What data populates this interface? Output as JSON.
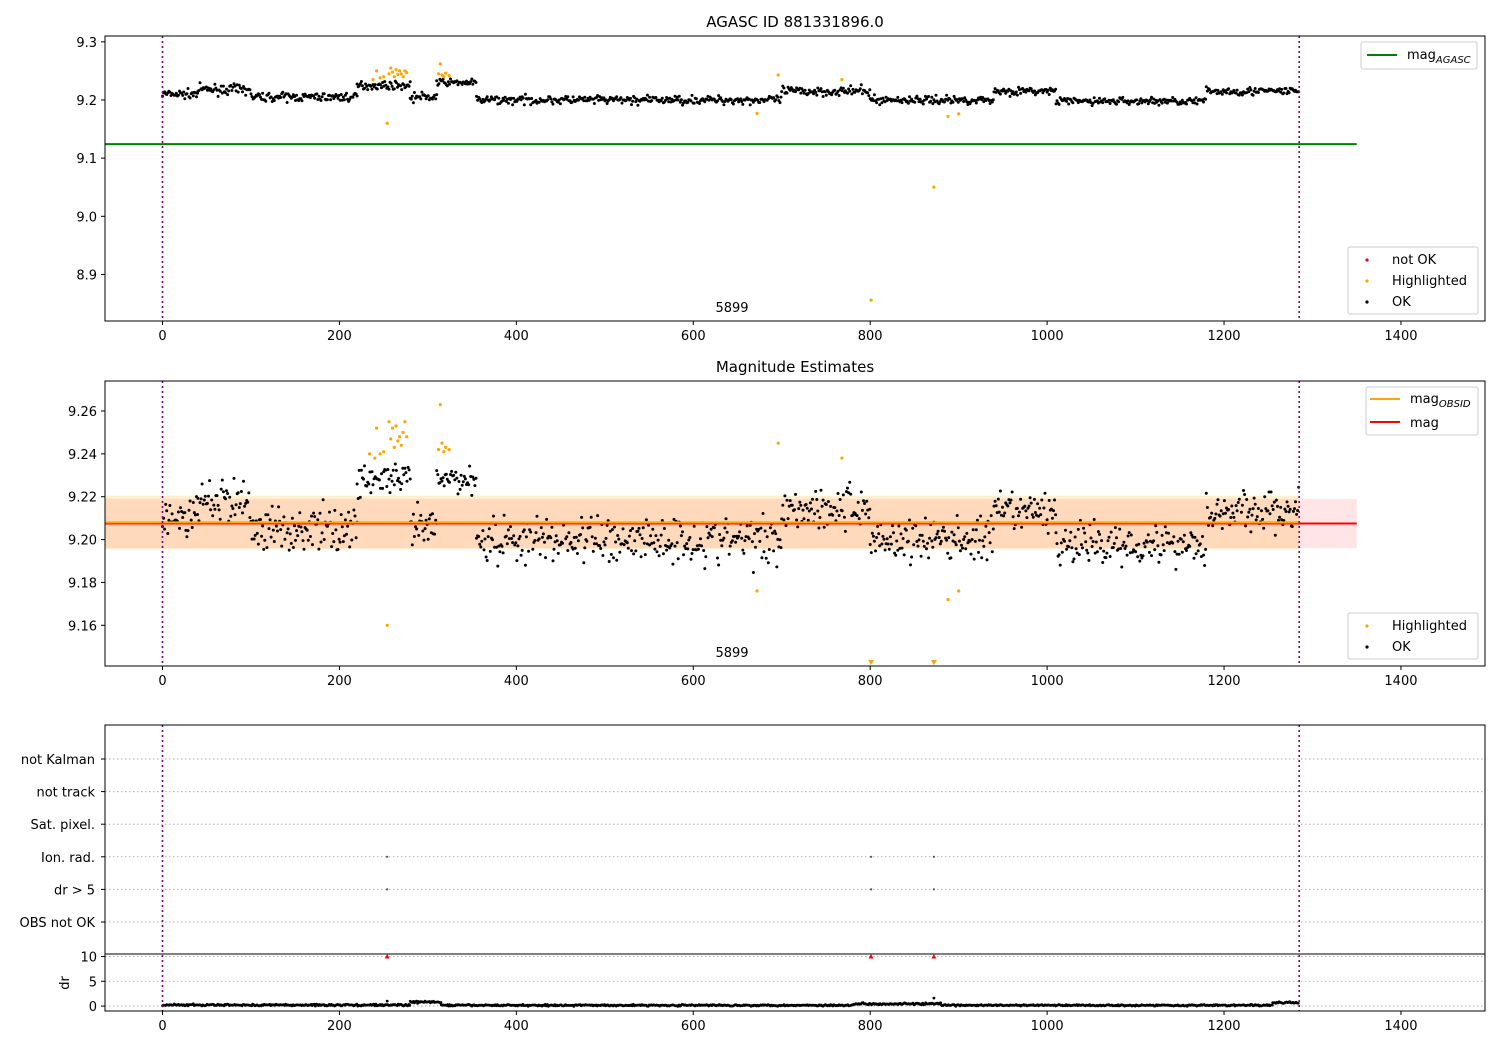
{
  "chart_data": [
    {
      "type": "scatter",
      "title": "AGASC ID 881331896.0",
      "xlim": [
        -65,
        1495
      ],
      "ylim": [
        8.82,
        9.31
      ],
      "xticks": [
        0,
        200,
        400,
        600,
        800,
        1000,
        1200,
        1400
      ],
      "yticks": [
        8.9,
        9.0,
        9.1,
        9.2,
        9.3
      ],
      "grid": false,
      "obsid_label": "5899",
      "obs_boundaries": [
        0,
        1285
      ],
      "legend_upper": [
        {
          "label": "mag",
          "sub": "AGASC",
          "color": "#008000"
        }
      ],
      "legend_lower": [
        {
          "label": "not OK",
          "color": "#ff0000"
        },
        {
          "label": "Highlighted",
          "color": "#ffa500"
        },
        {
          "label": "OK",
          "color": "#000000"
        }
      ],
      "mag_agasc": 9.124,
      "mag_agasc_xrange": [
        -65,
        1350
      ],
      "series": [
        {
          "name": "OK",
          "color": "#000000",
          "segments": [
            {
              "x": [
                0,
                40
              ],
              "base": 9.21,
              "amp": 0.009
            },
            {
              "x": [
                40,
                100
              ],
              "base": 9.218,
              "amp": 0.01
            },
            {
              "x": [
                100,
                220
              ],
              "base": 9.205,
              "amp": 0.009
            },
            {
              "x": [
                220,
                280
              ],
              "base": 9.225,
              "amp": 0.008
            },
            {
              "x": [
                280,
                310
              ],
              "base": 9.205,
              "amp": 0.01
            },
            {
              "x": [
                310,
                355
              ],
              "base": 9.23,
              "amp": 0.007
            },
            {
              "x": [
                355,
                650
              ],
              "base": 9.2,
              "amp": 0.009
            },
            {
              "x": [
                650,
                700
              ],
              "base": 9.2,
              "amp": 0.01
            },
            {
              "x": [
                700,
                800
              ],
              "base": 9.215,
              "amp": 0.01
            },
            {
              "x": [
                800,
                940
              ],
              "base": 9.2,
              "amp": 0.009
            },
            {
              "x": [
                940,
                1010
              ],
              "base": 9.215,
              "amp": 0.008
            },
            {
              "x": [
                1010,
                1180
              ],
              "base": 9.198,
              "amp": 0.008
            },
            {
              "x": [
                1180,
                1285
              ],
              "base": 9.215,
              "amp": 0.009
            }
          ]
        },
        {
          "name": "Highlighted",
          "color": "#ffa500",
          "points": [
            [
              238,
              9.235
            ],
            [
              242,
              9.25
            ],
            [
              246,
              9.238
            ],
            [
              250,
              9.24
            ],
            [
              254,
              9.16
            ],
            [
              256,
              9.245
            ],
            [
              258,
              9.255
            ],
            [
              260,
              9.248
            ],
            [
              262,
              9.24
            ],
            [
              264,
              9.252
            ],
            [
              266,
              9.244
            ],
            [
              268,
              9.25
            ],
            [
              270,
              9.245
            ],
            [
              272,
              9.24
            ],
            [
              274,
              9.25
            ],
            [
              276,
              9.247
            ],
            [
              312,
              9.245
            ],
            [
              314,
              9.262
            ],
            [
              316,
              9.243
            ],
            [
              318,
              9.24
            ],
            [
              320,
              9.246
            ],
            [
              324,
              9.242
            ],
            [
              672,
              9.177
            ],
            [
              696,
              9.243
            ],
            [
              768,
              9.235
            ],
            [
              801,
              8.856
            ],
            [
              872,
              9.05
            ],
            [
              888,
              9.172
            ],
            [
              900,
              9.176
            ]
          ]
        }
      ]
    },
    {
      "type": "scatter",
      "title": "Magnitude Estimates",
      "xlim": [
        -65,
        1495
      ],
      "ylim": [
        9.141,
        9.274
      ],
      "xticks": [
        0,
        200,
        400,
        600,
        800,
        1000,
        1200,
        1400
      ],
      "yticks": [
        9.16,
        9.18,
        9.2,
        9.22,
        9.24,
        9.26
      ],
      "grid": false,
      "obsid_label": "5899",
      "obs_boundaries": [
        0,
        1285
      ],
      "legend_upper": [
        {
          "label": "mag",
          "sub": "OBSID",
          "color": "#ffa500"
        },
        {
          "label": "mag",
          "sub": "",
          "color": "#ff0000"
        }
      ],
      "legend_lower": [
        {
          "label": "Highlighted",
          "color": "#ffa500"
        },
        {
          "label": "OK",
          "color": "#000000"
        }
      ],
      "mag": 9.2075,
      "mag_band": [
        9.196,
        9.219
      ],
      "mag_obsid": 9.208,
      "mag_obsid_band": [
        9.1955,
        9.2205
      ],
      "band_xrange": [
        -65,
        1350
      ],
      "obsid_xrange": [
        -65,
        1285
      ],
      "series": [
        {
          "name": "OK",
          "color": "#000000",
          "segments": [
            {
              "x": [
                0,
                40
              ],
              "base": 9.21,
              "amp": 0.011
            },
            {
              "x": [
                40,
                100
              ],
              "base": 9.218,
              "amp": 0.013
            },
            {
              "x": [
                100,
                220
              ],
              "base": 9.205,
              "amp": 0.013
            },
            {
              "x": [
                220,
                280
              ],
              "base": 9.228,
              "amp": 0.009
            },
            {
              "x": [
                280,
                310
              ],
              "base": 9.205,
              "amp": 0.012
            },
            {
              "x": [
                310,
                355
              ],
              "base": 9.228,
              "amp": 0.008
            },
            {
              "x": [
                355,
                650
              ],
              "base": 9.2,
              "amp": 0.014
            },
            {
              "x": [
                650,
                700
              ],
              "base": 9.2,
              "amp": 0.014
            },
            {
              "x": [
                700,
                800
              ],
              "base": 9.215,
              "amp": 0.013
            },
            {
              "x": [
                800,
                940
              ],
              "base": 9.2,
              "amp": 0.013
            },
            {
              "x": [
                940,
                1010
              ],
              "base": 9.213,
              "amp": 0.011
            },
            {
              "x": [
                1010,
                1180
              ],
              "base": 9.198,
              "amp": 0.012
            },
            {
              "x": [
                1180,
                1285
              ],
              "base": 9.213,
              "amp": 0.012
            }
          ]
        },
        {
          "name": "Highlighted",
          "color": "#ffa500",
          "points": [
            [
              234,
              9.24
            ],
            [
              240,
              9.238
            ],
            [
              242,
              9.252
            ],
            [
              246,
              9.24
            ],
            [
              250,
              9.241
            ],
            [
              254,
              9.16
            ],
            [
              256,
              9.255
            ],
            [
              258,
              9.247
            ],
            [
              260,
              9.252
            ],
            [
              262,
              9.243
            ],
            [
              264,
              9.253
            ],
            [
              266,
              9.246
            ],
            [
              268,
              9.248
            ],
            [
              270,
              9.244
            ],
            [
              272,
              9.25
            ],
            [
              274,
              9.255
            ],
            [
              276,
              9.248
            ],
            [
              312,
              9.242
            ],
            [
              314,
              9.263
            ],
            [
              316,
              9.245
            ],
            [
              318,
              9.241
            ],
            [
              320,
              9.243
            ],
            [
              324,
              9.242
            ],
            [
              672,
              9.176
            ],
            [
              696,
              9.245
            ],
            [
              768,
              9.238
            ],
            [
              888,
              9.172
            ],
            [
              900,
              9.176
            ]
          ]
        },
        {
          "name": "Highlighted (clipped)",
          "color": "#ffa500",
          "marker": "triangle",
          "points": [
            [
              801,
              9.141
            ],
            [
              872,
              9.141
            ]
          ]
        }
      ]
    },
    {
      "type": "scatter",
      "title": "",
      "xlim": [
        -65,
        1495
      ],
      "xticks": [
        0,
        200,
        400,
        600,
        800,
        1000,
        1200,
        1400
      ],
      "obs_boundaries": [
        0,
        1285
      ],
      "flag_categories": [
        "not Kalman",
        "not track",
        "Sat. pixel.",
        "Ion. rad.",
        "dr > 5",
        "OBS not OK"
      ],
      "flag_points": [
        {
          "category": "Ion. rad.",
          "x": [
            254,
            801,
            872
          ]
        },
        {
          "category": "dr > 5",
          "x": [
            254,
            801,
            872
          ]
        }
      ],
      "dr": {
        "ylabel": "dr",
        "ylim": [
          -1,
          10.5
        ],
        "yticks": [
          0,
          5,
          10
        ],
        "clipped_x": [
          254,
          801,
          872
        ],
        "clipped_value": 10,
        "segments": [
          {
            "x": [
              0,
              280
            ],
            "base": 0.2,
            "amp": 0.25
          },
          {
            "x": [
              280,
              315
            ],
            "base": 0.8,
            "amp": 0.25
          },
          {
            "x": [
              315,
              780
            ],
            "base": 0.15,
            "amp": 0.2
          },
          {
            "x": [
              780,
              880
            ],
            "base": 0.45,
            "amp": 0.25
          },
          {
            "x": [
              880,
              1255
            ],
            "base": 0.15,
            "amp": 0.2
          },
          {
            "x": [
              1255,
              1285
            ],
            "base": 0.7,
            "amp": 0.25
          }
        ],
        "extra_points": [
          [
            254,
            1.0
          ],
          [
            872,
            1.6
          ]
        ]
      }
    }
  ]
}
